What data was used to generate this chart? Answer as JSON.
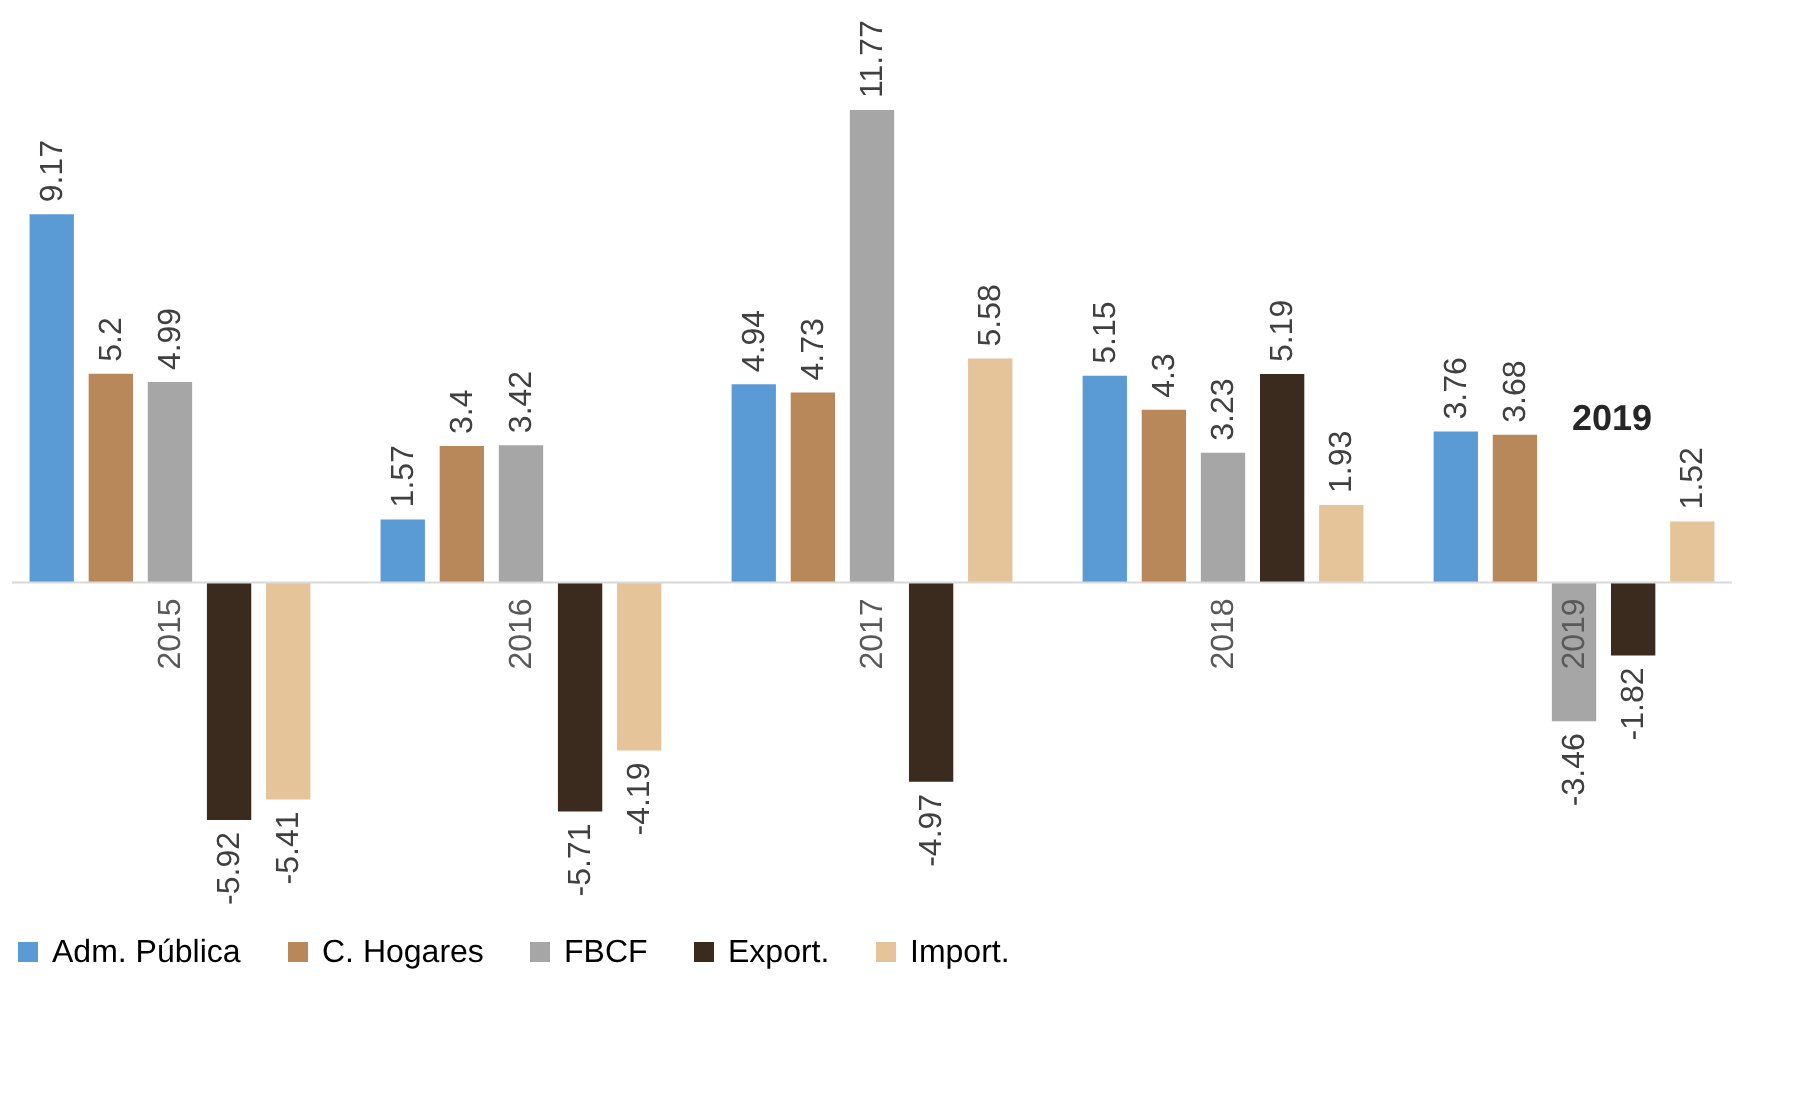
{
  "chart_data": {
    "type": "bar",
    "categories": [
      "2015",
      "2016",
      "2017",
      "2018",
      "2019"
    ],
    "series": [
      {
        "name": "Adm. Pública",
        "color": "#5b9bd5",
        "values": [
          9.17,
          1.57,
          4.94,
          5.15,
          3.76
        ]
      },
      {
        "name": "C. Hogares",
        "color": "#b8885a",
        "values": [
          5.2,
          3.4,
          4.73,
          4.3,
          3.68
        ]
      },
      {
        "name": "FBCF",
        "color": "#a6a6a6",
        "values": [
          4.99,
          3.42,
          11.77,
          3.23,
          -3.46
        ]
      },
      {
        "name": "Export.",
        "color": "#3b2a1e",
        "values": [
          -5.92,
          -5.71,
          -4.97,
          5.19,
          -1.82
        ]
      },
      {
        "name": "Import.",
        "color": "#e6c49a",
        "values": [
          -5.41,
          -4.19,
          5.58,
          1.93,
          1.52
        ]
      }
    ],
    "tick_labels": "x",
    "data_labels": true,
    "legend": "bottom",
    "annotations": [
      "2019"
    ]
  }
}
